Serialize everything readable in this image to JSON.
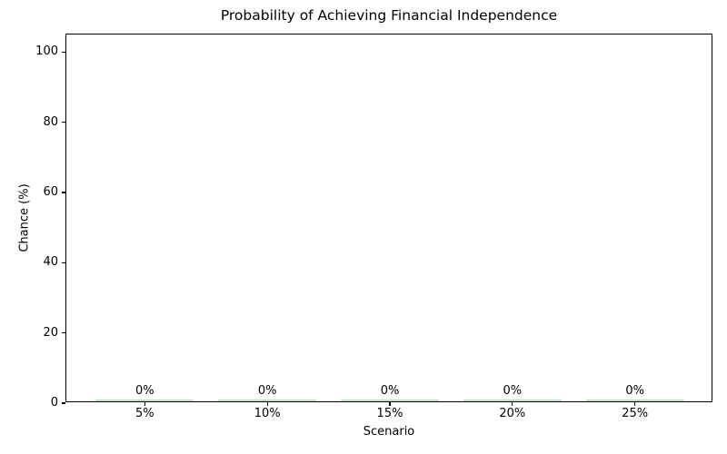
{
  "chart_data": {
    "type": "bar",
    "title": "Probability of Achieving Financial Independence",
    "xlabel": "Scenario",
    "ylabel": "Chance (%)",
    "categories": [
      "5%",
      "10%",
      "15%",
      "20%",
      "25%"
    ],
    "values": [
      0,
      0,
      0,
      0,
      0
    ],
    "bar_labels": [
      "0%",
      "0%",
      "0%",
      "0%",
      "0%"
    ],
    "yticks": [
      0,
      20,
      40,
      60,
      80,
      100
    ],
    "ylim": [
      0,
      105
    ],
    "bar_color": "#a8dba8",
    "grid": false,
    "legend_position": "none",
    "background_color": "#ffffff",
    "text_color": "#000000"
  }
}
